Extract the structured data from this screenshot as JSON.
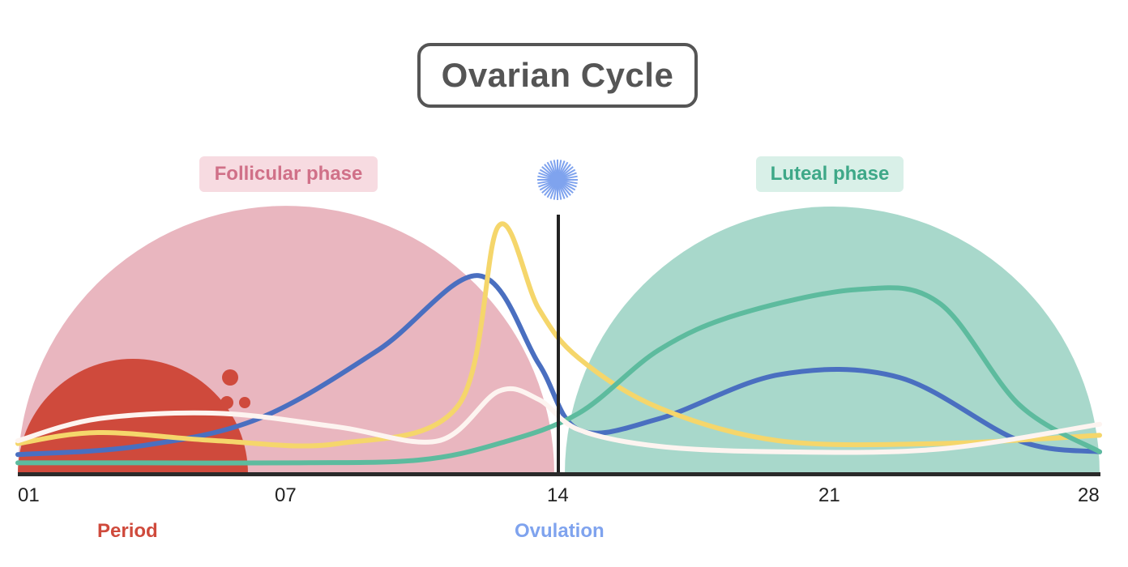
{
  "title": "Ovarian Cycle",
  "phases": {
    "follicular": {
      "label": "Follicular phase",
      "text_color": "#d07088",
      "bg_color": "#f7dbe1",
      "fill_color": "#e9b6bf"
    },
    "luteal": {
      "label": "Luteal phase",
      "text_color": "#3ea888",
      "bg_color": "#d9f0e8",
      "fill_color": "#a8d8cb"
    }
  },
  "events": {
    "period": {
      "label": "Period",
      "color": "#cf4a3c"
    },
    "ovulation": {
      "label": "Ovulation",
      "color": "#7fa3ee"
    }
  },
  "x_axis": {
    "ticks": [
      "01",
      "07",
      "14",
      "21",
      "28"
    ],
    "range": [
      1,
      28
    ]
  },
  "chart_data": {
    "type": "line",
    "xlabel": "",
    "ylabel": "",
    "series": [
      {
        "color": "#4a6fc0",
        "x": [
          1,
          4,
          7,
          10,
          12.5,
          14,
          15,
          17,
          20,
          23,
          26,
          28
        ],
        "y": [
          0.07,
          0.1,
          0.2,
          0.45,
          0.72,
          0.4,
          0.16,
          0.2,
          0.36,
          0.35,
          0.12,
          0.08
        ]
      },
      {
        "color": "#f5d66b",
        "x": [
          1,
          3,
          6,
          9,
          12,
          13,
          14,
          15,
          17,
          20,
          24,
          28
        ],
        "y": [
          0.11,
          0.15,
          0.12,
          0.11,
          0.25,
          0.9,
          0.6,
          0.42,
          0.24,
          0.12,
          0.11,
          0.14
        ]
      },
      {
        "color": "#5dbb9e",
        "x": [
          1,
          4,
          8,
          11,
          13,
          15,
          17,
          19,
          22,
          24,
          26,
          28
        ],
        "y": [
          0.04,
          0.04,
          0.04,
          0.05,
          0.11,
          0.22,
          0.45,
          0.58,
          0.67,
          0.62,
          0.25,
          0.08
        ]
      },
      {
        "color": "#fdf4f0",
        "x": [
          1,
          3,
          6,
          9,
          11.5,
          13,
          14,
          15,
          17,
          20,
          24,
          28
        ],
        "y": [
          0.12,
          0.2,
          0.22,
          0.17,
          0.12,
          0.3,
          0.27,
          0.16,
          0.1,
          0.08,
          0.09,
          0.18
        ]
      }
    ]
  }
}
